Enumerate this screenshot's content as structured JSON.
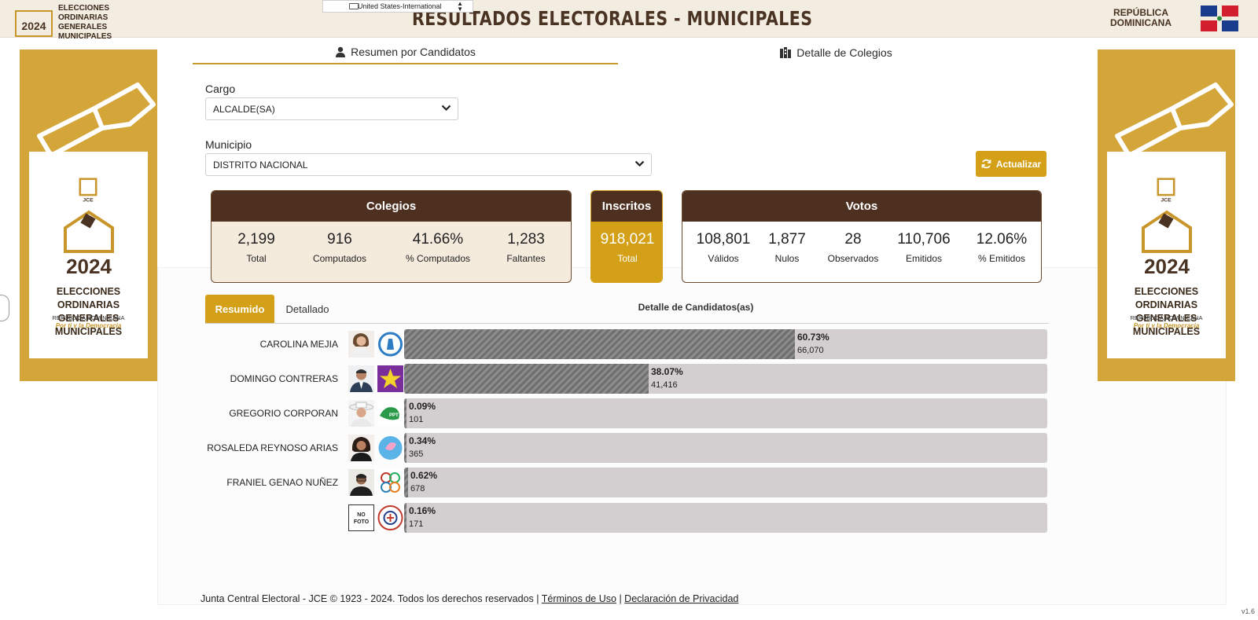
{
  "header": {
    "logo_text_line1": "ELECCIONES ORDINARIAS",
    "logo_text_line2": "GENERALES MUNICIPALES",
    "logo_year": "2024",
    "title": "RESULTADOS ELECTORALES - MUNICIPALES",
    "country_line1": "REPÚBLICA",
    "country_line2": "DOMINICANA",
    "keyboard_indicator": "United States-International"
  },
  "banner": {
    "mark": "JCE",
    "year": "2024",
    "title_line1": "ELECCIONES ORDINARIAS",
    "title_line2": "GENERALES MUNICIPALES",
    "country": "REPÚBLICA DOMINICANA",
    "slogan": "Por ti y la Democracia"
  },
  "tabs": [
    {
      "label": "Resumen por Candidatos",
      "icon": "person-icon"
    },
    {
      "label": "Detalle de Colegios",
      "icon": "building-icon"
    }
  ],
  "form": {
    "cargo_label": "Cargo",
    "cargo_value": "ALCALDE(SA)",
    "municipio_label": "Municipio",
    "municipio_value": "DISTRITO NACIONAL",
    "refresh_label": "Actualizar"
  },
  "colegios": {
    "title": "Colegios",
    "stats": [
      {
        "value": "2,199",
        "label": "Total"
      },
      {
        "value": "916",
        "label": "Computados"
      },
      {
        "value": "41.66%",
        "label": "% Computados"
      },
      {
        "value": "1,283",
        "label": "Faltantes"
      }
    ]
  },
  "inscritos": {
    "title": "Inscritos",
    "value": "918,021",
    "label": "Total"
  },
  "votos": {
    "title": "Votos",
    "stats": [
      {
        "value": "108,801",
        "label": "Válidos"
      },
      {
        "value": "1,877",
        "label": "Nulos"
      },
      {
        "value": "28",
        "label": "Observados"
      },
      {
        "value": "110,706",
        "label": "Emitidos"
      },
      {
        "value": "12.06%",
        "label": "% Emitidos"
      }
    ]
  },
  "subtabs": {
    "active": "Resumido",
    "inactive": "Detallado",
    "detail_title": "Detalle de Candidatos(as)"
  },
  "candidates": [
    {
      "name": "CAROLINA MEJIA",
      "percent": "60.73%",
      "votes": "66,070",
      "share": 60.73
    },
    {
      "name": "DOMINGO CONTRERAS",
      "percent": "38.07%",
      "votes": "41,416",
      "share": 38.07
    },
    {
      "name": "GREGORIO CORPORAN",
      "percent": "0.09%",
      "votes": "101",
      "share": 0.09
    },
    {
      "name": "ROSALEDA REYNOSO ARIAS",
      "percent": "0.34%",
      "votes": "365",
      "share": 0.34
    },
    {
      "name": "FRANIEL GENAO NUÑEZ",
      "percent": "0.62%",
      "votes": "678",
      "share": 0.62
    },
    {
      "name": "",
      "percent": "0.16%",
      "votes": "171",
      "share": 0.16,
      "no_photo_label_1": "NO",
      "no_photo_label_2": "FOTO"
    }
  ],
  "footer": {
    "text": "Junta Central Electoral - JCE © 1923 - 2024. Todos los derechos reservados |",
    "link1": "Términos de Uso",
    "sep": "|",
    "link2": "Declaración de Privacidad"
  },
  "version": "v1.6"
}
